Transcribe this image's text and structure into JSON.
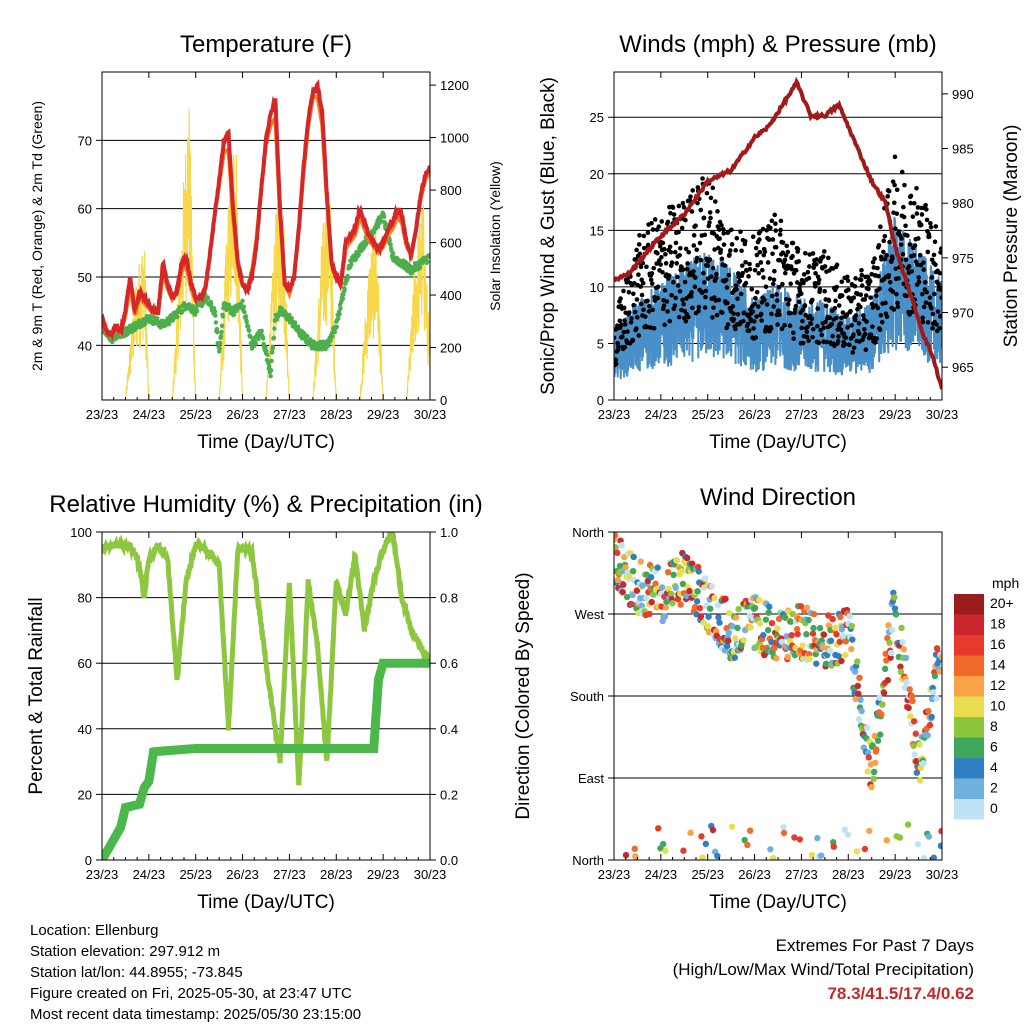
{
  "chart_data": [
    {
      "type": "line",
      "title": "Temperature (F)",
      "xlabel": "Time (Day/UTC)",
      "ylabel": "2m & 9m T (Red, Orange) & 2m Td (Green)",
      "ylabel_right": "Solar Insolation (Yellow)",
      "x_ticks": [
        "23/23",
        "24/23",
        "25/23",
        "26/23",
        "27/23",
        "28/23",
        "29/23",
        "30/23"
      ],
      "ylim": [
        32,
        80
      ],
      "y_ticks": [
        40,
        50,
        60,
        70
      ],
      "y2lim": [
        0,
        1250
      ],
      "y2_ticks": [
        0,
        200,
        400,
        600,
        800,
        1000,
        1200
      ],
      "series": [
        {
          "name": "2m T",
          "color": "#d62728",
          "x": [
            0,
            0.1,
            0.2,
            0.3,
            0.4,
            0.5,
            0.6,
            0.7,
            0.8,
            0.9,
            1.0,
            1.1,
            1.2,
            1.3,
            1.4,
            1.5,
            1.6,
            1.7,
            1.8,
            1.9,
            2.0,
            2.1,
            2.2,
            2.3,
            2.4,
            2.5,
            2.6,
            2.7,
            2.8,
            2.9,
            3.0,
            3.1,
            3.2,
            3.3,
            3.4,
            3.5,
            3.6,
            3.7,
            3.8,
            3.9,
            4.0,
            4.1,
            4.2,
            4.3,
            4.4,
            4.5,
            4.6,
            4.7,
            4.8,
            4.9,
            5.0,
            5.1,
            5.2,
            5.3,
            5.4,
            5.5,
            5.6,
            5.7,
            5.8,
            5.9,
            6.0,
            6.1,
            6.2,
            6.3,
            6.4,
            6.5,
            6.6,
            6.7,
            6.8,
            6.9,
            7.0
          ],
          "y": [
            44,
            42,
            41.5,
            43,
            42,
            45,
            50,
            45,
            48,
            47,
            46,
            45,
            45,
            52,
            49,
            47,
            48,
            52,
            53,
            49,
            47,
            47,
            48,
            53,
            59,
            64,
            70,
            71,
            60,
            52,
            49,
            48,
            50,
            55,
            63,
            70,
            74,
            76,
            60,
            49,
            48,
            50,
            57,
            66,
            73,
            77,
            78,
            74,
            62,
            52,
            50,
            49,
            55,
            56,
            57,
            60,
            58,
            56,
            55,
            54,
            55,
            57,
            58,
            60,
            59,
            55,
            53,
            57,
            62,
            65,
            66
          ]
        },
        {
          "name": "9m T",
          "color": "#f57c20",
          "x": [
            0,
            1,
            1.5,
            2,
            2.5,
            3,
            3.5,
            4,
            4.5,
            5,
            5.5,
            6,
            6.5,
            7
          ],
          "y": [
            44,
            46,
            49,
            48,
            65,
            51,
            71,
            49,
            76,
            52,
            56,
            55,
            56,
            66
          ]
        },
        {
          "name": "2m Td",
          "color": "#4cae4c",
          "x": [
            0,
            0.2,
            0.5,
            1.0,
            1.3,
            1.5,
            1.8,
            2.0,
            2.2,
            2.4,
            2.5,
            2.6,
            2.8,
            3.0,
            3.2,
            3.4,
            3.6,
            3.7,
            3.8,
            4.0,
            4.2,
            4.5,
            4.8,
            5.0,
            5.3,
            5.5,
            5.7,
            6.0,
            6.2,
            6.4,
            6.6,
            6.8,
            7.0
          ],
          "y": [
            43,
            41,
            42,
            44,
            43,
            44,
            46,
            45,
            47,
            45,
            39,
            46,
            45,
            46,
            40,
            42,
            36,
            44,
            45,
            44,
            42,
            40,
            40,
            43,
            52,
            54,
            56,
            59,
            53,
            52,
            51,
            52,
            53
          ]
        },
        {
          "name": "Solar Insolation",
          "color": "#f6d84a",
          "x": [
            0,
            0.5,
            0.7,
            0.9,
            1.0,
            1.5,
            1.7,
            1.85,
            2.0,
            2.5,
            2.7,
            2.85,
            3.0,
            3.5,
            3.7,
            3.85,
            4.0,
            4.5,
            4.7,
            4.85,
            5.0,
            5.5,
            5.7,
            5.85,
            6.0,
            6.5,
            6.7,
            6.85,
            7.0
          ],
          "y2": [
            0,
            0,
            450,
            650,
            0,
            0,
            700,
            1250,
            0,
            0,
            800,
            1150,
            0,
            0,
            700,
            900,
            0,
            0,
            650,
            900,
            0,
            0,
            550,
            700,
            0,
            0,
            600,
            800,
            200
          ]
        }
      ]
    },
    {
      "type": "scatter",
      "title": "Winds (mph) & Pressure (mb)",
      "xlabel": "Time (Day/UTC)",
      "ylabel": "Sonic/Prop Wind & Gust (Blue, Black)",
      "ylabel_right": "Station Pressure (Maroon)",
      "x_ticks": [
        "23/23",
        "24/23",
        "25/23",
        "26/23",
        "27/23",
        "28/23",
        "29/23",
        "30/23"
      ],
      "ylim": [
        0,
        29
      ],
      "y_ticks": [
        0,
        5,
        10,
        15,
        20,
        25
      ],
      "y2lim": [
        962,
        992
      ],
      "y2_ticks": [
        965,
        970,
        975,
        980,
        985,
        990
      ],
      "series": [
        {
          "name": "Wind",
          "color": "#4a90c8",
          "x": [
            0,
            0.5,
            1,
            1.5,
            2,
            2.5,
            3,
            3.5,
            4,
            4.5,
            5,
            5.5,
            6,
            6.5,
            7
          ],
          "y": [
            4,
            6,
            7,
            8,
            9,
            8,
            6,
            7,
            6,
            6,
            5,
            6,
            11,
            9,
            7
          ]
        },
        {
          "name": "Gust",
          "color": "#000000",
          "x": [
            0,
            0.5,
            1,
            1.5,
            2,
            2.5,
            3,
            3.5,
            4,
            4.5,
            5,
            5.5,
            6,
            6.5,
            7
          ],
          "y": [
            6,
            12,
            14,
            15,
            17,
            13,
            12,
            14,
            11,
            11,
            9,
            10,
            18,
            16,
            12
          ]
        },
        {
          "name": "Pressure",
          "color": "#a11a1a",
          "x": [
            0,
            0.3,
            0.6,
            1,
            1.5,
            2,
            2.5,
            3,
            3.3,
            3.6,
            3.9,
            4.2,
            4.5,
            4.8,
            5.2,
            5.5,
            5.8,
            6.0,
            6.3,
            6.6,
            6.8,
            7.0
          ],
          "y2": [
            973,
            973.5,
            975,
            977,
            979,
            982,
            983,
            986,
            987,
            989,
            991,
            988,
            988,
            989,
            985,
            982,
            980,
            976,
            972,
            968,
            966,
            963
          ]
        }
      ]
    },
    {
      "type": "line",
      "title": "Relative Humidity (%) & Precipitation (in)",
      "xlabel": "Time (Day/UTC)",
      "ylabel": "Percent & Total Rainfall",
      "x_ticks": [
        "23/23",
        "24/23",
        "25/23",
        "26/23",
        "27/23",
        "28/23",
        "29/23",
        "30/23"
      ],
      "ylim": [
        0,
        100
      ],
      "y_ticks": [
        0,
        20,
        40,
        60,
        80,
        100
      ],
      "y2lim": [
        0,
        1.0
      ],
      "y2_ticks": [
        "0.0",
        "0.2",
        "0.4",
        "0.6",
        "0.8",
        "1.0"
      ],
      "series": [
        {
          "name": "Relative Humidity",
          "color": "#8dc63f",
          "x": [
            0,
            0.3,
            0.6,
            0.8,
            0.9,
            1.0,
            1.2,
            1.4,
            1.6,
            1.8,
            2.0,
            2.2,
            2.5,
            2.7,
            2.9,
            3.2,
            3.5,
            3.8,
            4.0,
            4.2,
            4.4,
            4.6,
            4.8,
            5.0,
            5.2,
            5.4,
            5.6,
            5.8,
            6.0,
            6.2,
            6.4,
            6.6,
            6.8,
            7.0
          ],
          "y": [
            95,
            96,
            96,
            90,
            80,
            92,
            96,
            92,
            55,
            85,
            96,
            95,
            90,
            40,
            95,
            94,
            60,
            30,
            85,
            22,
            85,
            65,
            30,
            85,
            75,
            93,
            70,
            85,
            95,
            100,
            80,
            70,
            65,
            60
          ]
        },
        {
          "name": "Total Rainfall",
          "color": "#4cb84c",
          "x": [
            0,
            0.2,
            0.4,
            0.5,
            0.8,
            0.9,
            1.0,
            1.1,
            2.0,
            3.0,
            4.0,
            5.0,
            5.8,
            5.9,
            6.0,
            7.0
          ],
          "y2": [
            0,
            0.05,
            0.1,
            0.16,
            0.17,
            0.22,
            0.24,
            0.33,
            0.34,
            0.34,
            0.34,
            0.34,
            0.34,
            0.55,
            0.6,
            0.6
          ]
        }
      ]
    },
    {
      "type": "scatter",
      "title": "Wind Direction",
      "xlabel": "Time (Day/UTC)",
      "ylabel": "Direction (Colored By Speed)",
      "x_ticks": [
        "23/23",
        "24/23",
        "25/23",
        "26/23",
        "27/23",
        "28/23",
        "29/23",
        "30/23"
      ],
      "ylim": [
        0,
        360
      ],
      "y_tick_labels": [
        "North",
        "East",
        "South",
        "West",
        "North"
      ],
      "y_tick_values": [
        0,
        90,
        180,
        270,
        360
      ],
      "legend": {
        "title": "mph",
        "labels": [
          "20+",
          "18",
          "16",
          "14",
          "12",
          "10",
          "8",
          "6",
          "4",
          "2",
          "0"
        ],
        "colors": [
          "#9b1c1c",
          "#c9272b",
          "#e53a2d",
          "#f06a2a",
          "#f8a446",
          "#e8dd4e",
          "#8cc63f",
          "#3fa65a",
          "#2f7fc1",
          "#6fb0df",
          "#bfe3f5"
        ]
      },
      "series": [
        {
          "name": "Direction",
          "x": [
            0,
            0.5,
            1.0,
            1.5,
            2.0,
            2.5,
            3.0,
            3.5,
            4.0,
            4.5,
            5.0,
            5.5,
            6.0,
            6.5,
            7.0
          ],
          "y": [
            330,
            300,
            290,
            310,
            280,
            250,
            260,
            245,
            250,
            240,
            250,
            100,
            280,
            100,
            240
          ]
        }
      ]
    }
  ],
  "info": {
    "location": "Location: Ellenburg",
    "elevation": "Station elevation: 297.912 m",
    "latlon": "Station lat/lon: 44.8955; -73.845",
    "created": "Figure created on Fri, 2025-05-30, at 23:47 UTC",
    "recent": "Most recent data timestamp: 2025/05/30 23:15:00"
  },
  "extremes": {
    "title": "Extremes For Past 7 Days",
    "subtitle": "(High/Low/Max Wind/Total Precipitation)",
    "values": "78.3/41.5/17.4/0.62",
    "color": "#c62828"
  }
}
